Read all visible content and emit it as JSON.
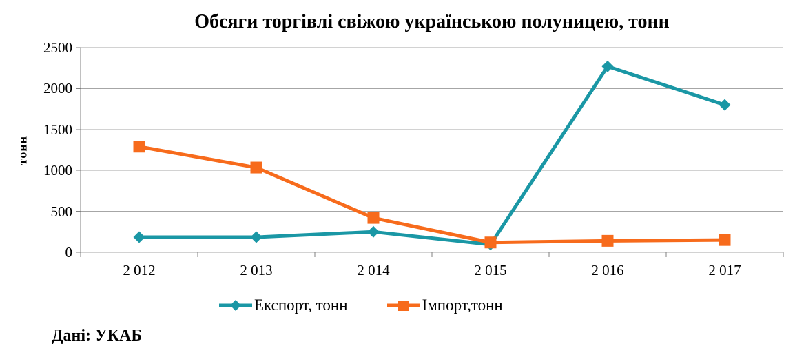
{
  "chart_data": {
    "type": "line",
    "title": "Обсяги торгівлі свіжою українською полуницею, тонн",
    "ylabel": "тонн",
    "xlabel": "",
    "categories": [
      "2 012",
      "2 013",
      "2 014",
      "2 015",
      "2 016",
      "2 017"
    ],
    "yticks": [
      2500,
      2000,
      1500,
      1000,
      500,
      0
    ],
    "ylim": [
      0,
      2500
    ],
    "grid": true,
    "legend_position": "bottom",
    "gridline_color": "#a6a6a6",
    "axis_color": "#808080",
    "series": [
      {
        "name": "Експорт, тонн",
        "marker": "diamond",
        "color": "#1a97a5",
        "values": [
          185,
          185,
          250,
          95,
          2270,
          1800
        ]
      },
      {
        "name": "Імпорт,тонн",
        "marker": "square",
        "color": "#f76b1c",
        "values": [
          1290,
          1035,
          420,
          120,
          140,
          150
        ]
      }
    ]
  },
  "footer": {
    "text": "Дані: УКАБ"
  }
}
